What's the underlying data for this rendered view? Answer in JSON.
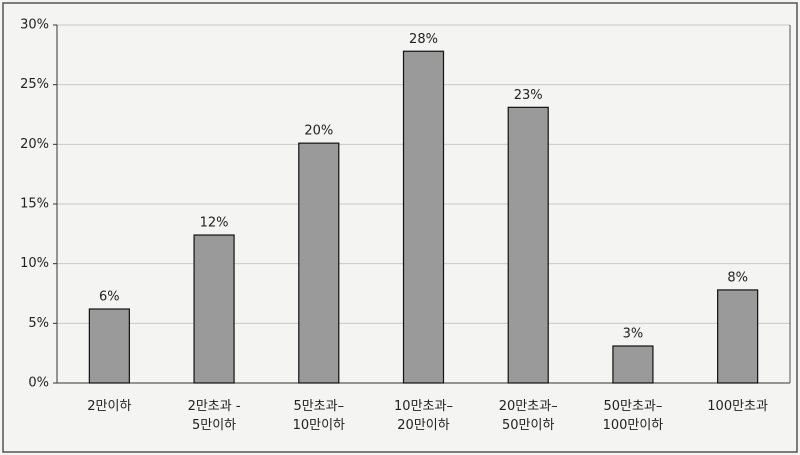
{
  "chart_data": {
    "type": "bar",
    "categories": [
      "2만이하",
      "2만초과 -\n5만이하",
      "5만초과–\n10만이하",
      "10만초과–\n20만이하",
      "20만초과–\n50만이하",
      "50만초과–\n100만이하",
      "100만초과"
    ],
    "values": [
      6.2,
      12.4,
      20.1,
      27.8,
      23.1,
      3.1,
      7.8
    ],
    "value_labels": [
      "6%",
      "12%",
      "20%",
      "28%",
      "23%",
      "3%",
      "8%"
    ],
    "color": "#9a9a9a",
    "ylim": [
      0,
      30
    ],
    "yticks": [
      {
        "value": 0,
        "label": "0%"
      },
      {
        "value": 5,
        "label": "5%"
      },
      {
        "value": 10,
        "label": "10%"
      },
      {
        "value": 15,
        "label": "15%"
      },
      {
        "value": 20,
        "label": "20%"
      },
      {
        "value": 25,
        "label": "25%"
      },
      {
        "value": 30,
        "label": "30%"
      }
    ],
    "grid": true
  }
}
